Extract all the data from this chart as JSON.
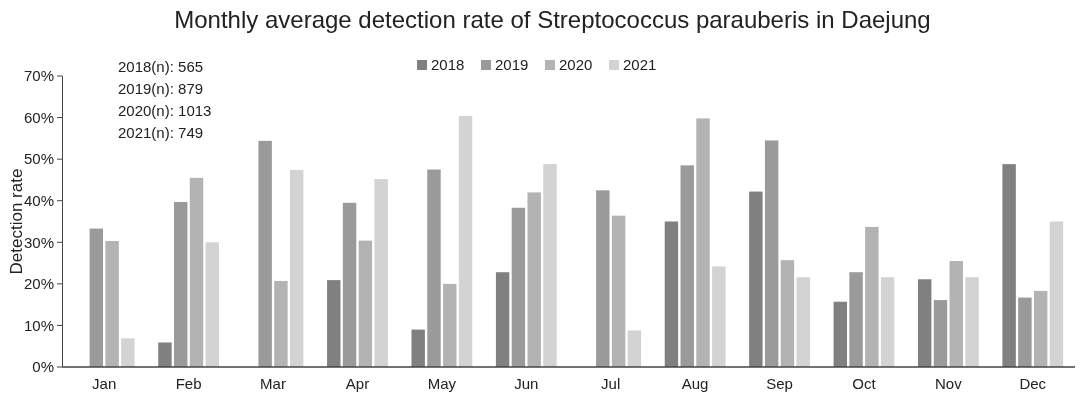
{
  "chart_data": {
    "type": "bar",
    "title": "Monthly average detection rate of Streptococcus parauberis in Daejung",
    "ylabel": "Detection rate",
    "categories": [
      "Jan",
      "Feb",
      "Mar",
      "Apr",
      "May",
      "Jun",
      "Jul",
      "Aug",
      "Sep",
      "Oct",
      "Nov",
      "Dec"
    ],
    "series": [
      {
        "name": "2018",
        "color": "#808080",
        "values": [
          null,
          5.9,
          null,
          20.9,
          9.0,
          22.8,
          null,
          35.0,
          42.2,
          15.7,
          21.1,
          48.8
        ]
      },
      {
        "name": "2019",
        "color": "#9a9a9a",
        "values": [
          33.3,
          39.7,
          54.4,
          39.5,
          47.5,
          38.3,
          42.5,
          48.5,
          54.5,
          22.8,
          16.1,
          16.7
        ]
      },
      {
        "name": "2020",
        "color": "#b3b3b3",
        "values": [
          30.3,
          45.5,
          20.7,
          30.4,
          20.0,
          42.0,
          36.4,
          59.8,
          25.7,
          33.7,
          25.5,
          18.3
        ]
      },
      {
        "name": "2021",
        "color": "#d3d3d3",
        "values": [
          6.9,
          30.0,
          47.4,
          45.2,
          60.4,
          48.8,
          8.8,
          24.2,
          21.6,
          21.6,
          21.6,
          35.0
        ]
      }
    ],
    "ylim": [
      0,
      70
    ],
    "yticks": [
      {
        "value": 0,
        "label": "0%"
      },
      {
        "value": 10,
        "label": "10%"
      },
      {
        "value": 20,
        "label": "20%"
      },
      {
        "value": 30,
        "label": "30%"
      },
      {
        "value": 40,
        "label": "40%"
      },
      {
        "value": 50,
        "label": "50%"
      },
      {
        "value": 60,
        "label": "60%"
      },
      {
        "value": 70,
        "label": "70%"
      }
    ],
    "annotations": [
      "2018(n): 565",
      "2019(n): 879",
      "2020(n): 1013",
      "2021(n): 749"
    ],
    "legend": "top",
    "grid": false
  }
}
